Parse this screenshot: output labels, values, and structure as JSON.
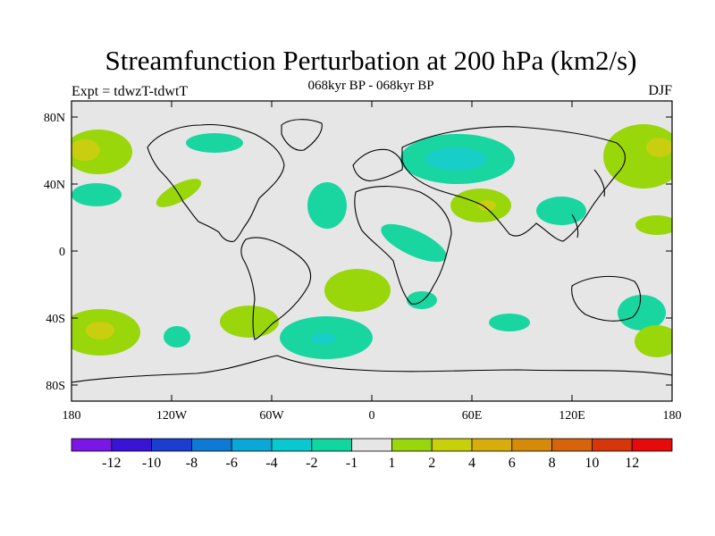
{
  "header": {
    "title": "Streamfunction Perturbation at 200 hPa (km2/s)",
    "subtitle": "068kyr BP - 068kyr BP",
    "left_label": "Expt = tdwzT-tdwtT",
    "right_label": "DJF"
  },
  "axes": {
    "y_ticks": [
      "80N",
      "40N",
      "0",
      "40S",
      "80S"
    ],
    "x_ticks": [
      "180",
      "120W",
      "60W",
      "0",
      "60E",
      "120E",
      "180"
    ]
  },
  "colorbar": {
    "labels": [
      "-12",
      "-10",
      "-8",
      "-6",
      "-4",
      "-2",
      "-1",
      "1",
      "2",
      "4",
      "6",
      "8",
      "10",
      "12"
    ],
    "colors": [
      "#7a17e6",
      "#3a14d6",
      "#1a3ecf",
      "#0f7ad6",
      "#0aa8d6",
      "#08c9cf",
      "#10d6a0",
      "#e6e6e6",
      "#99d60a",
      "#c8d00a",
      "#d6ad0a",
      "#d68a0a",
      "#d6640a",
      "#d6360a",
      "#e60a0a"
    ]
  },
  "colors": {
    "background": "#e6e6e6",
    "neg_1": "#19d6a1",
    "neg_2": "#17cfc8",
    "pos_1": "#99d60a",
    "pos_2": "#c9cf10"
  }
}
